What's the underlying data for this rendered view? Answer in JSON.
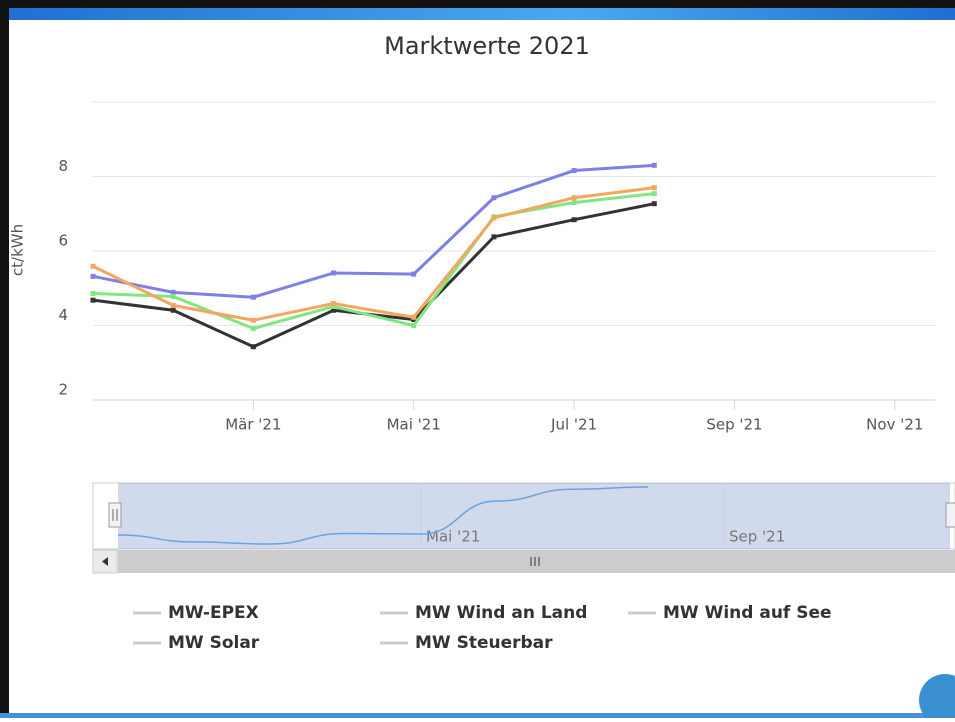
{
  "chart_data": {
    "type": "line",
    "title": "Marktwerte 2021",
    "ylabel": "ct/kWh",
    "x": [
      "2021-01",
      "2021-02",
      "2021-03",
      "2021-04",
      "2021-05",
      "2021-06",
      "2021-07",
      "2021-08"
    ],
    "xlim": [
      "2021-01",
      "2021-12"
    ],
    "xticks": [
      {
        "value": "2021-03",
        "label": "Mär '21"
      },
      {
        "value": "2021-05",
        "label": "Mai '21"
      },
      {
        "value": "2021-07",
        "label": "Jul '21"
      },
      {
        "value": "2021-09",
        "label": "Sep '21"
      },
      {
        "value": "2021-11",
        "label": "Nov '21"
      }
    ],
    "ylim": [
      2,
      10
    ],
    "yticks": [
      2,
      4,
      6,
      8
    ],
    "grid": true,
    "series": [
      {
        "name": "MW-EPEX",
        "color": "#7f7fe6",
        "values": [
          5.32,
          4.89,
          4.76,
          5.41,
          5.38,
          7.43,
          8.16,
          8.3
        ]
      },
      {
        "name": "MW Wind an Land",
        "color": "#333333",
        "values": [
          4.68,
          4.41,
          3.43,
          4.41,
          4.16,
          6.38,
          6.84,
          7.27
        ]
      },
      {
        "name": "MW Wind auf See",
        "color": "#80e67f",
        "values": [
          4.86,
          4.78,
          3.92,
          4.51,
          4.0,
          6.92,
          7.3,
          7.54
        ]
      },
      {
        "name": "MW Solar",
        "color": "#f4a55f",
        "values": [
          5.59,
          4.54,
          4.14,
          4.59,
          4.22,
          6.89,
          7.43,
          7.7
        ]
      },
      {
        "name": "MW Steuerbar",
        "color": "#aaaaaa",
        "values": [
          null,
          null,
          null,
          null,
          null,
          null,
          null,
          null
        ]
      }
    ],
    "navigator": {
      "xticks": [
        {
          "value": "2021-05",
          "label": "Mai '21"
        },
        {
          "value": "2021-09",
          "label": "Sep '21"
        }
      ]
    }
  }
}
